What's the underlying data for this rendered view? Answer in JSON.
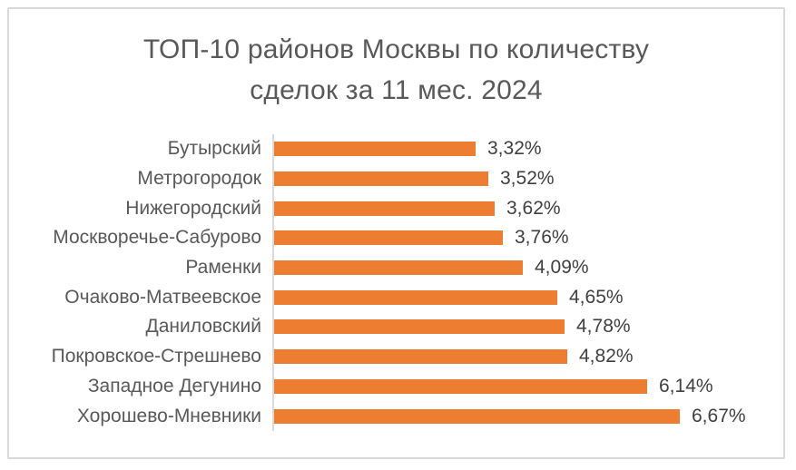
{
  "chart_title_lines": [
    "ТОП-10 районов Москвы по количеству",
    "сделок за 11 мес. 2024"
  ],
  "chart_data": {
    "type": "bar",
    "orientation": "horizontal",
    "title": "ТОП-10 районов Москвы по количеству сделок за 11 мес. 2024",
    "categories": [
      "Бутырский",
      "Метрогородок",
      "Нижегородский",
      "Москворечье-Сабурово",
      "Раменки",
      "Очаково-Матвеевское",
      "Даниловский",
      "Покровское-Стрешнево",
      "Западное Дегунино",
      "Хорошево-Мневники"
    ],
    "values": [
      3.32,
      3.52,
      3.62,
      3.76,
      4.09,
      4.65,
      4.78,
      4.82,
      6.14,
      6.67
    ],
    "value_labels": [
      "3,32%",
      "3,52%",
      "3,62%",
      "3,76%",
      "4,09%",
      "4,65%",
      "4,78%",
      "4,82%",
      "6,14%",
      "6,67%"
    ],
    "xlabel": "",
    "ylabel": "",
    "xlim": [
      0,
      7
    ],
    "grid": false,
    "legend": false,
    "bar_color": "#ED7D31",
    "axis_line_color": "#D9D9D9",
    "title_color": "#595959",
    "category_label_color": "#595959",
    "value_label_color": "#404040"
  }
}
